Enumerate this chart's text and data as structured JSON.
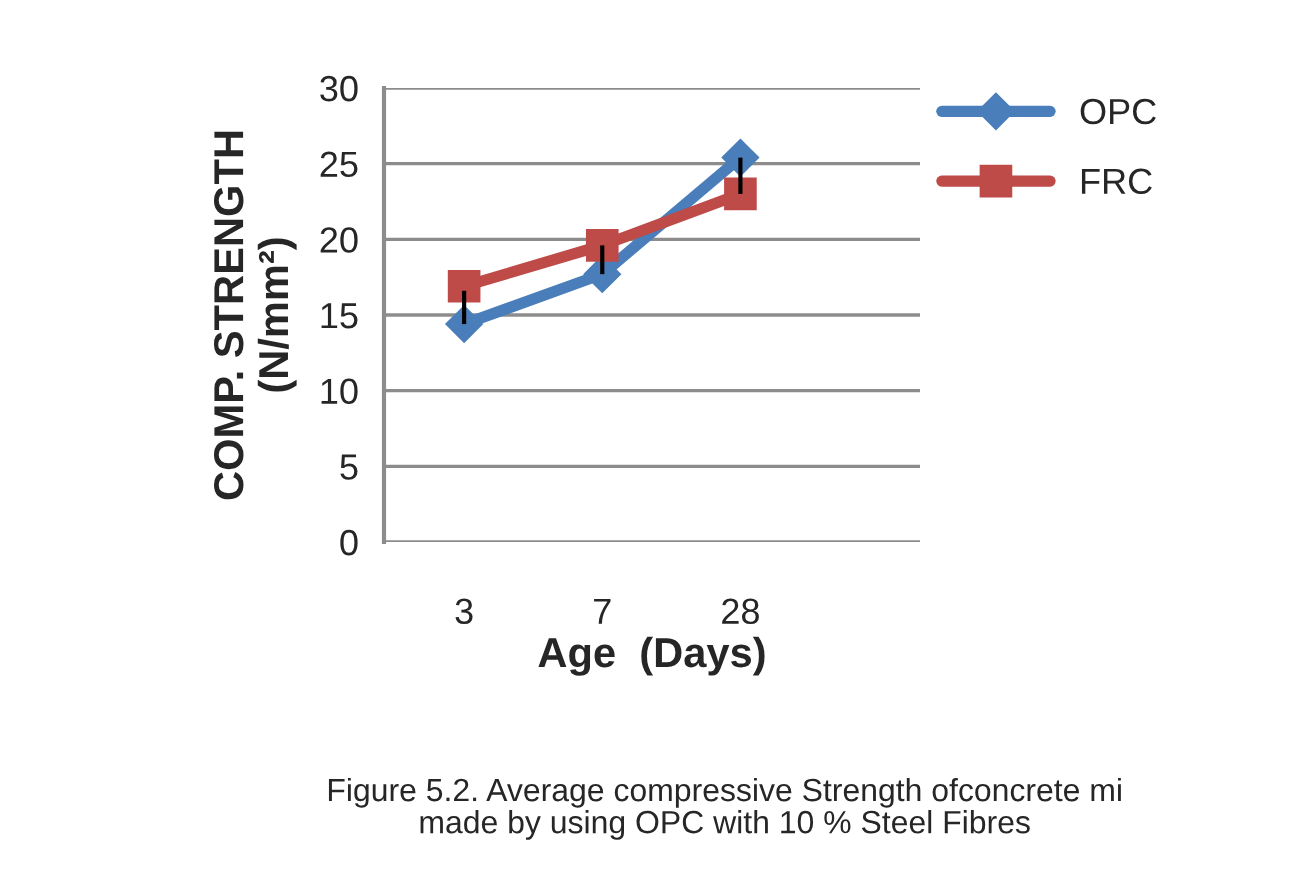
{
  "chart_data": {
    "type": "line",
    "categories": [
      "3",
      "7",
      "28"
    ],
    "series": [
      {
        "name": "OPC",
        "color": "#4a7ebb",
        "marker": "diamond",
        "values": [
          14.4,
          17.7,
          25.4
        ],
        "errors": [
          [
            14.4,
            16.6
          ],
          [
            17.7,
            19.6
          ],
          [
            23.0,
            25.4
          ]
        ]
      },
      {
        "name": "FRC",
        "color": "#be4b48",
        "marker": "square",
        "values": [
          16.9,
          19.6,
          23.0
        ]
      }
    ],
    "xlabel": "Age  (Days)",
    "ylabel": "COMP. STRENGTH\n(N/mm²)",
    "ylim": [
      0,
      30
    ],
    "yticks": [
      0,
      5,
      10,
      15,
      20,
      25,
      30
    ],
    "grid": "y",
    "legend": "top right",
    "line_style": "solid",
    "annotations": [
      "Figure 5.2. Average compressive Strength ofconcrete mi\nmade by using OPC with 10 % Steel Fibres"
    ]
  }
}
